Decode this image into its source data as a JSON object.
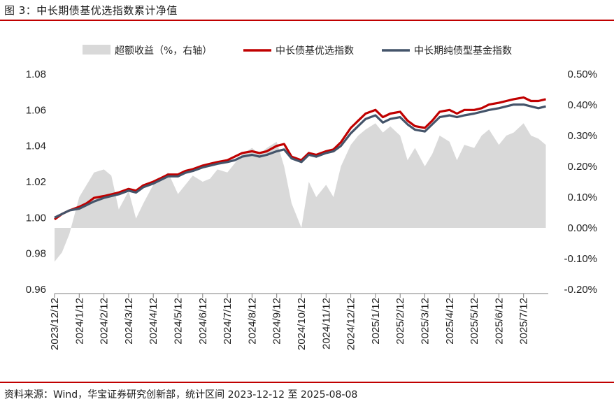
{
  "figure_title": "图 3：中长期债基优选指数累计净值",
  "source_note": "资料来源：Wind，华宝证券研究创新部，统计区间 2023-12-12 至 2025-08-08",
  "chart_data": {
    "type": "line",
    "legend_placement": "top",
    "grid": false,
    "x_ticks": [
      "2023/12/12",
      "2024/1/12",
      "2024/2/12",
      "2024/3/12",
      "2024/4/12",
      "2024/5/12",
      "2024/6/12",
      "2024/7/12",
      "2024/8/12",
      "2024/9/12",
      "2024/10/12",
      "2024/11/12",
      "2024/12/12",
      "2025/1/12",
      "2025/2/12",
      "2025/3/12",
      "2025/4/12",
      "2025/5/12",
      "2025/6/12",
      "2025/7/12"
    ],
    "y_left": {
      "ylim": [
        0.96,
        1.08
      ],
      "ticks": [
        "0.96",
        "0.98",
        "1.00",
        "1.02",
        "1.04",
        "1.06",
        "1.08"
      ]
    },
    "y_right": {
      "ylim": [
        -0.2,
        0.5
      ],
      "ticks": [
        "-0.20%",
        "-0.10%",
        "0.00%",
        "0.10%",
        "0.20%",
        "0.30%",
        "0.40%",
        "0.50%"
      ]
    },
    "x_months": [
      0,
      0.3,
      0.6,
      1,
      1.3,
      1.6,
      2,
      2.3,
      2.6,
      3,
      3.3,
      3.6,
      4,
      4.3,
      4.6,
      5,
      5.3,
      5.6,
      6,
      6.3,
      6.6,
      7,
      7.3,
      7.6,
      8,
      8.3,
      8.6,
      9,
      9.3,
      9.6,
      10,
      10.3,
      10.6,
      11,
      11.3,
      11.6,
      12,
      12.3,
      12.6,
      13,
      13.3,
      13.6,
      14,
      14.3,
      14.6,
      15,
      15.3,
      15.6,
      16,
      16.3,
      16.6,
      17,
      17.3,
      17.6,
      18,
      18.3,
      18.6,
      19,
      19.3,
      19.6,
      19.9
    ],
    "series": [
      {
        "name": "超额收益（%，右轴）",
        "axis": "right",
        "kind": "area",
        "color": "#d9d9d9",
        "values": [
          -0.11,
          -0.08,
          -0.02,
          0.1,
          0.14,
          0.18,
          0.19,
          0.17,
          0.06,
          0.12,
          0.03,
          0.08,
          0.14,
          0.16,
          0.18,
          0.11,
          0.14,
          0.17,
          0.15,
          0.16,
          0.19,
          0.18,
          0.21,
          0.24,
          0.26,
          0.24,
          0.26,
          0.28,
          0.2,
          0.08,
          0.0,
          0.15,
          0.1,
          0.14,
          0.1,
          0.2,
          0.27,
          0.3,
          0.32,
          0.34,
          0.31,
          0.33,
          0.3,
          0.22,
          0.26,
          0.2,
          0.24,
          0.3,
          0.28,
          0.22,
          0.27,
          0.26,
          0.3,
          0.32,
          0.27,
          0.3,
          0.31,
          0.34,
          0.3,
          0.29,
          0.27
        ]
      },
      {
        "name": "中长债基优选指数",
        "axis": "left",
        "kind": "line",
        "color": "#c00000",
        "values": [
          0.999,
          1.002,
          1.004,
          1.006,
          1.008,
          1.011,
          1.012,
          1.013,
          1.014,
          1.016,
          1.015,
          1.018,
          1.02,
          1.022,
          1.024,
          1.024,
          1.026,
          1.027,
          1.029,
          1.03,
          1.031,
          1.032,
          1.034,
          1.036,
          1.037,
          1.036,
          1.037,
          1.04,
          1.041,
          1.034,
          1.032,
          1.036,
          1.035,
          1.037,
          1.038,
          1.042,
          1.05,
          1.054,
          1.058,
          1.06,
          1.056,
          1.058,
          1.059,
          1.054,
          1.051,
          1.05,
          1.054,
          1.059,
          1.06,
          1.058,
          1.06,
          1.06,
          1.061,
          1.063,
          1.064,
          1.065,
          1.066,
          1.067,
          1.065,
          1.065,
          1.066
        ]
      },
      {
        "name": "中长期纯债型基金指数",
        "axis": "left",
        "kind": "line",
        "color": "#44546a",
        "values": [
          1.0,
          1.002,
          1.004,
          1.005,
          1.007,
          1.009,
          1.011,
          1.012,
          1.013,
          1.015,
          1.014,
          1.017,
          1.019,
          1.021,
          1.023,
          1.023,
          1.025,
          1.026,
          1.028,
          1.029,
          1.03,
          1.031,
          1.032,
          1.034,
          1.035,
          1.034,
          1.035,
          1.037,
          1.038,
          1.033,
          1.031,
          1.035,
          1.034,
          1.036,
          1.037,
          1.04,
          1.047,
          1.051,
          1.055,
          1.057,
          1.053,
          1.055,
          1.056,
          1.052,
          1.049,
          1.048,
          1.052,
          1.056,
          1.057,
          1.056,
          1.057,
          1.058,
          1.059,
          1.06,
          1.061,
          1.062,
          1.063,
          1.063,
          1.062,
          1.061,
          1.062
        ]
      }
    ]
  }
}
